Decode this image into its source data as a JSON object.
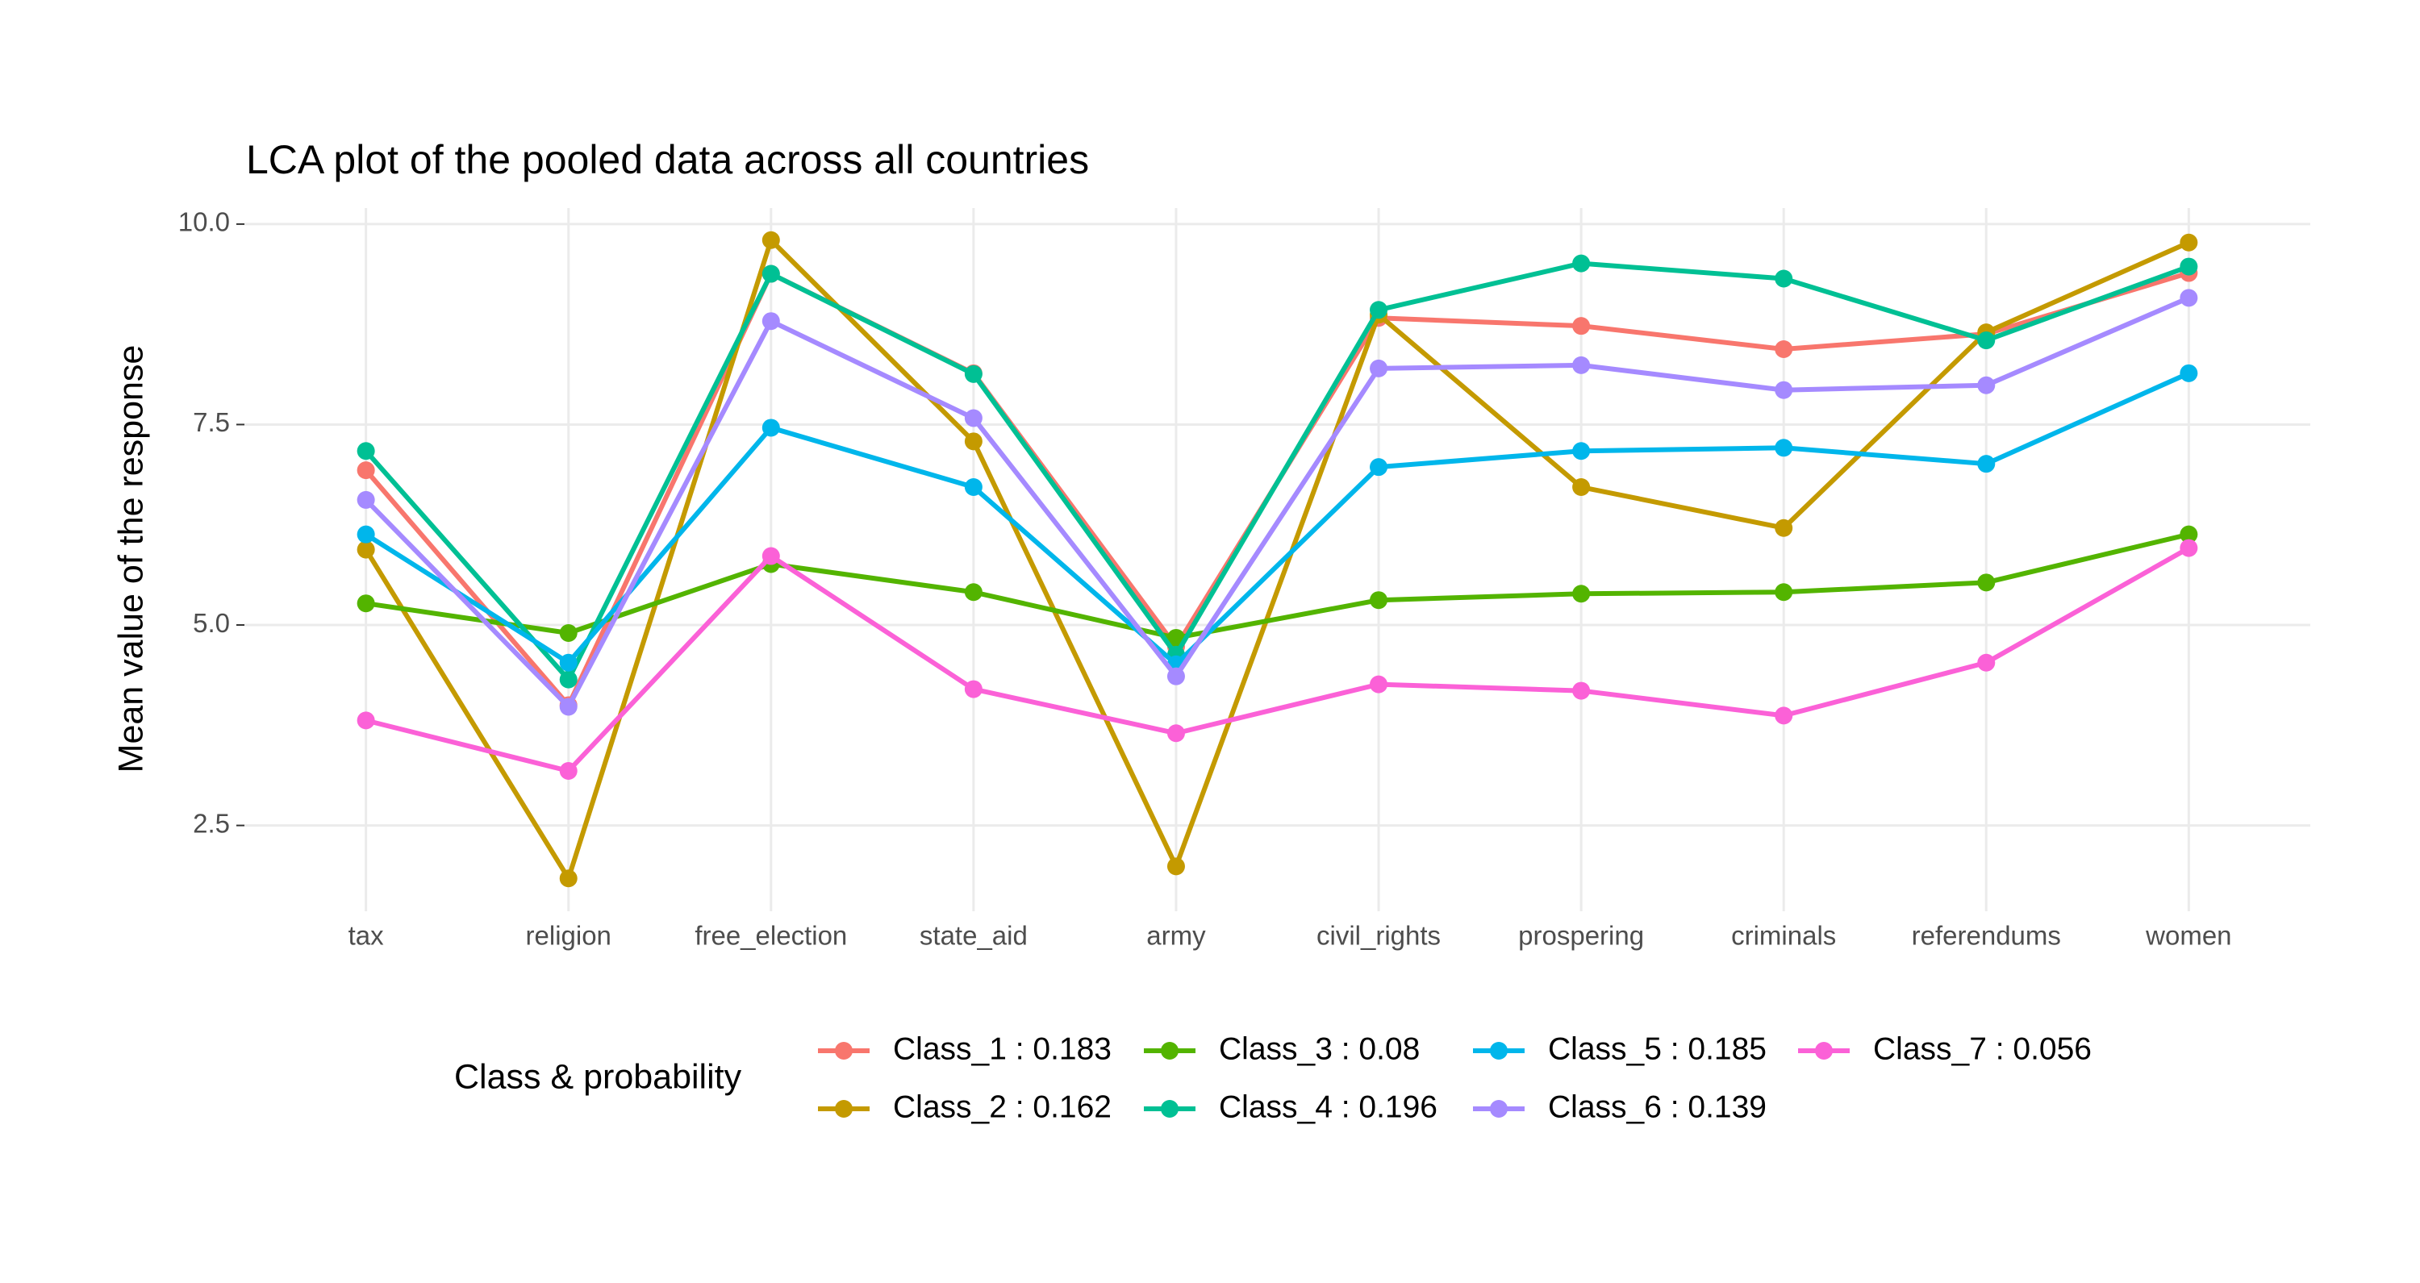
{
  "chart_data": {
    "type": "line",
    "title": "LCA plot of the pooled data across all countries",
    "y_label": "Mean value of the response",
    "legend_title": "Class & probability",
    "categories": [
      "tax",
      "religion",
      "free_election",
      "state_aid",
      "army",
      "civil_rights",
      "prospering",
      "criminals",
      "referendums",
      "women"
    ],
    "series": [
      {
        "name": "Class_1 : 0.183",
        "color": "#F8766D",
        "values": [
          6.93,
          4.0,
          9.38,
          8.14,
          4.73,
          8.83,
          8.73,
          8.44,
          8.63,
          9.39
        ]
      },
      {
        "name": "Class_2 : 0.162",
        "color": "#C49A00",
        "values": [
          5.94,
          1.84,
          9.8,
          7.29,
          1.99,
          8.87,
          6.72,
          6.21,
          8.65,
          9.77
        ]
      },
      {
        "name": "Class_3 : 0.08",
        "color": "#53B400",
        "values": [
          5.27,
          4.9,
          5.76,
          5.41,
          4.84,
          5.31,
          5.39,
          5.41,
          5.53,
          6.13
        ]
      },
      {
        "name": "Class_4 : 0.196",
        "color": "#00C094",
        "values": [
          7.17,
          4.32,
          9.38,
          8.13,
          4.63,
          8.93,
          9.51,
          9.32,
          8.55,
          9.47
        ]
      },
      {
        "name": "Class_5 : 0.185",
        "color": "#00B6EB",
        "values": [
          6.13,
          4.53,
          7.46,
          6.72,
          4.51,
          6.97,
          7.17,
          7.21,
          7.01,
          8.14
        ]
      },
      {
        "name": "Class_6 : 0.139",
        "color": "#A58AFF",
        "values": [
          6.56,
          3.98,
          8.79,
          7.58,
          4.36,
          8.2,
          8.24,
          7.93,
          7.99,
          9.08
        ]
      },
      {
        "name": "Class_7 : 0.056",
        "color": "#FB61D7",
        "values": [
          3.81,
          3.18,
          5.86,
          4.2,
          3.65,
          4.26,
          4.18,
          3.87,
          4.53,
          5.96
        ]
      }
    ],
    "ylim": [
      1.43,
      10.2
    ],
    "yticks": [
      {
        "value": 2.5,
        "label": "2.5"
      },
      {
        "value": 5,
        "label": "5.0"
      },
      {
        "value": 7.5,
        "label": "7.5"
      },
      {
        "value": 10,
        "label": "10.0"
      }
    ],
    "grid": true,
    "legend_position": "bottom"
  }
}
